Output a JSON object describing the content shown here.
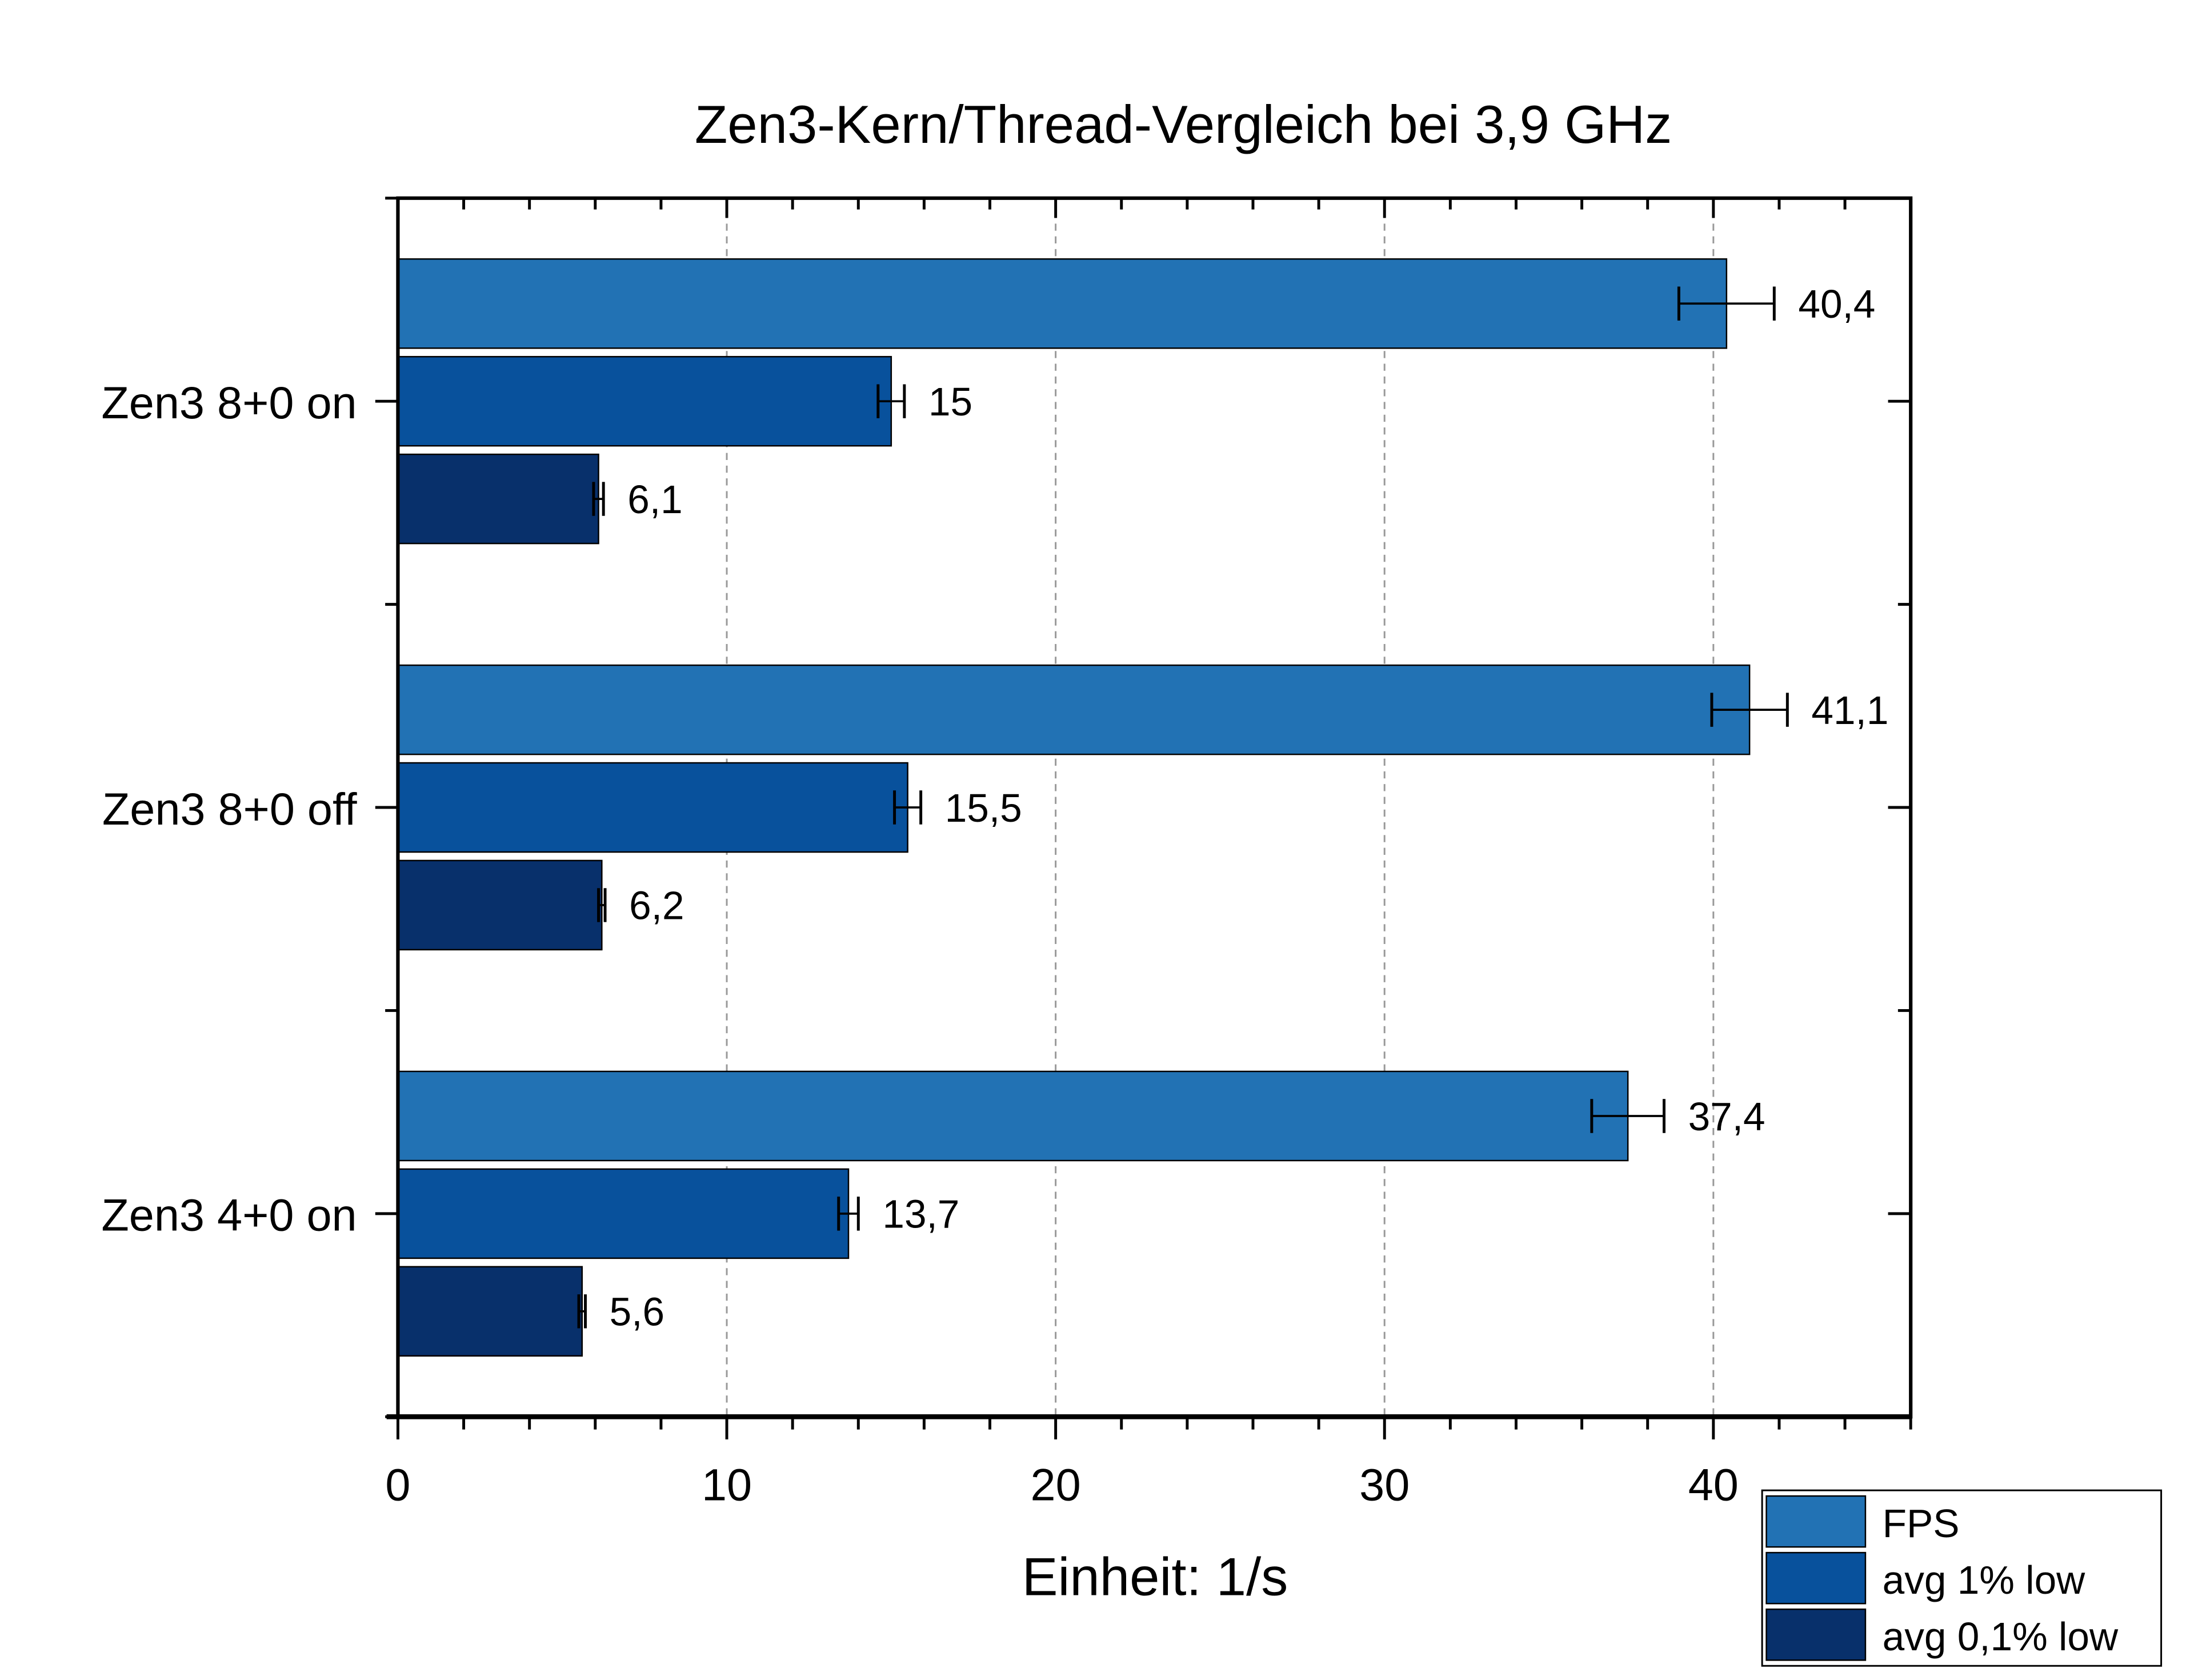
{
  "chart_data": {
    "type": "bar",
    "orientation": "horizontal",
    "title": "Zen3-Kern/Thread-Vergleich bei 3,9 GHz",
    "xlabel": "Einheit: 1/s",
    "ylabel": "",
    "xlim": [
      0,
      46
    ],
    "x_ticks": [
      "0",
      "10",
      "20",
      "30",
      "40"
    ],
    "grid": "vertical dashed at major ticks",
    "legend_position": "bottom-right",
    "categories": [
      "Zen3 8+0 on",
      "Zen3 8+0 off",
      "Zen3 4+0 on"
    ],
    "series": [
      {
        "name": "FPS",
        "color": "#2272b4",
        "values": [
          40.4,
          41.1,
          37.4
        ],
        "labels": [
          "40,4",
          "41,1",
          "37,4"
        ],
        "errors": [
          1.45,
          1.15,
          1.1
        ]
      },
      {
        "name": "avg 1% low",
        "color": "#08519c",
        "values": [
          15,
          15.5,
          13.7
        ],
        "labels": [
          "15",
          "15,5",
          "13,7"
        ],
        "errors": [
          0.4,
          0.4,
          0.3
        ]
      },
      {
        "name": "avg 0,1% low",
        "color": "#08306b",
        "values": [
          6.1,
          6.2,
          5.6
        ],
        "labels": [
          "6,1",
          "6,2",
          "5,6"
        ],
        "errors": [
          0.15,
          0.1,
          0.1
        ]
      }
    ]
  }
}
